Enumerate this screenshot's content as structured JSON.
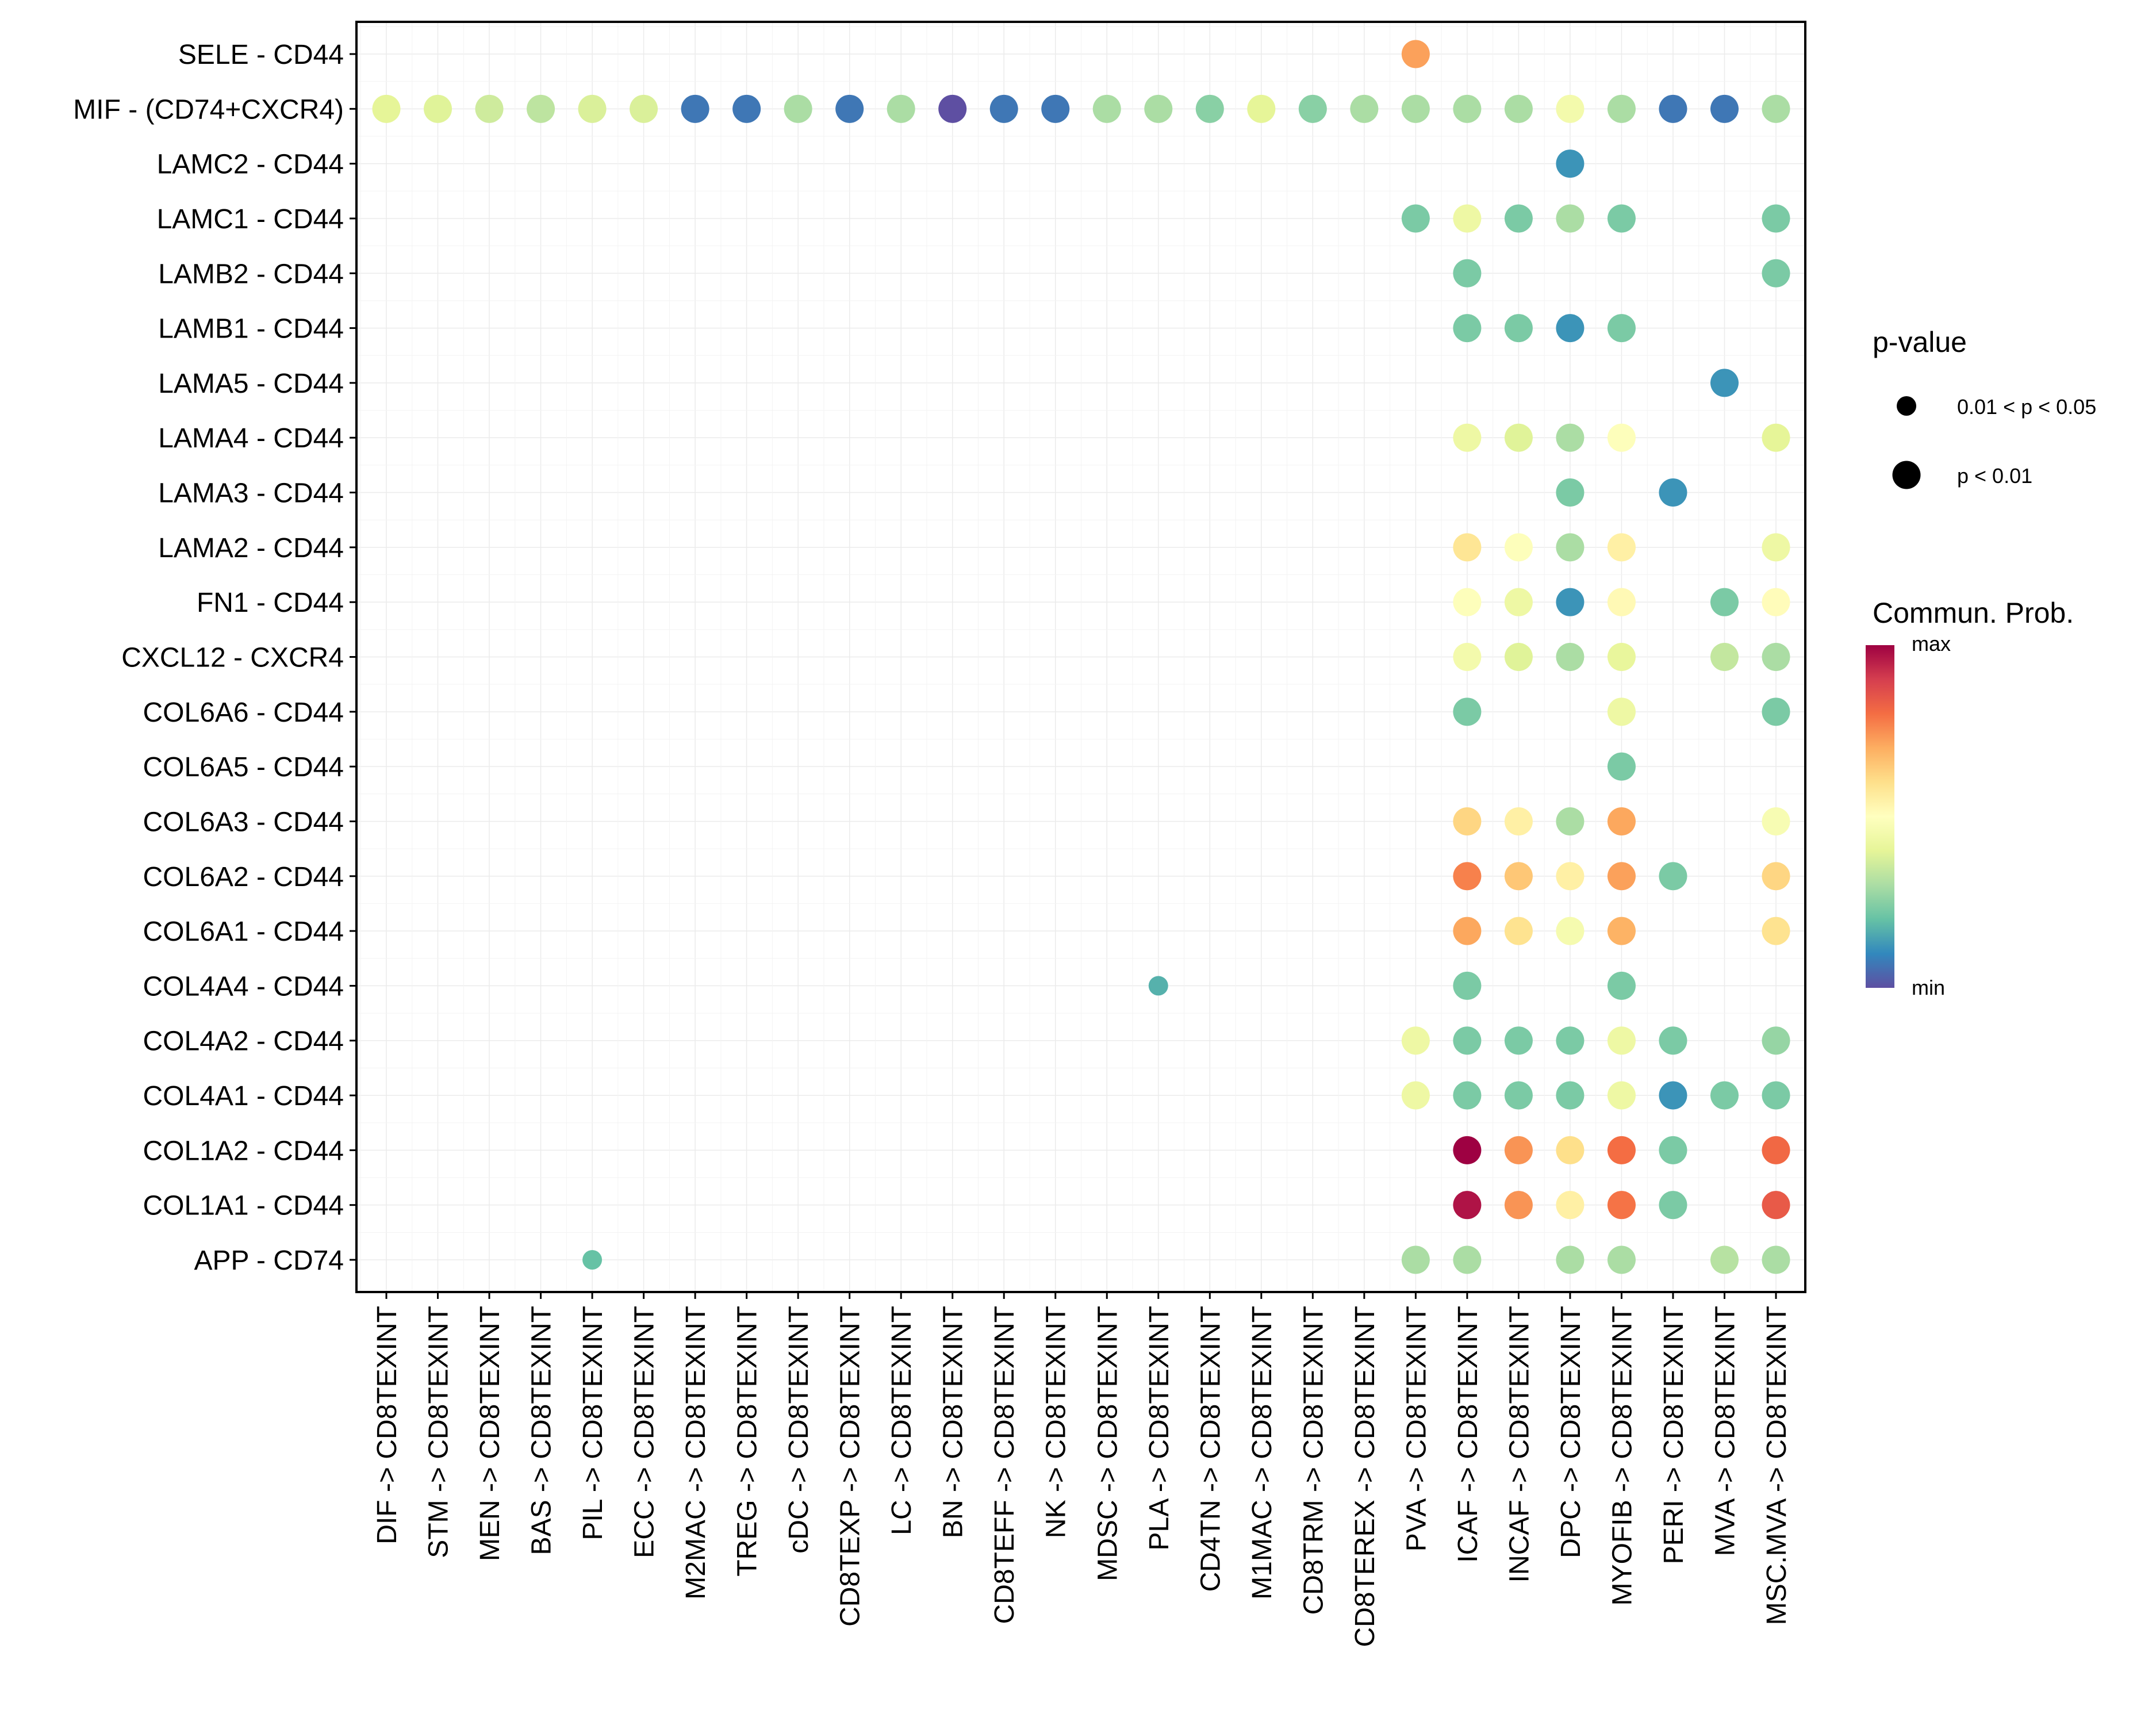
{
  "chart_data": {
    "type": "scatter",
    "subtype": "dot-plot",
    "title": "",
    "xlabel": "",
    "ylabel": "",
    "grid": true,
    "x_categories": [
      "DIF -> CD8TEXINT",
      "STM -> CD8TEXINT",
      "MEN -> CD8TEXINT",
      "BAS -> CD8TEXINT",
      "PIL -> CD8TEXINT",
      "ECC -> CD8TEXINT",
      "M2MAC -> CD8TEXINT",
      "TREG -> CD8TEXINT",
      "cDC -> CD8TEXINT",
      "CD8TEXP -> CD8TEXINT",
      "LC -> CD8TEXINT",
      "BN -> CD8TEXINT",
      "CD8TEFF -> CD8TEXINT",
      "NK -> CD8TEXINT",
      "MDSC -> CD8TEXINT",
      "PLA -> CD8TEXINT",
      "CD4TN -> CD8TEXINT",
      "M1MAC -> CD8TEXINT",
      "CD8TRM -> CD8TEXINT",
      "CD8TEREX -> CD8TEXINT",
      "PVA -> CD8TEXINT",
      "ICAF -> CD8TEXINT",
      "INCAF -> CD8TEXINT",
      "DPC -> CD8TEXINT",
      "MYOFIB -> CD8TEXINT",
      "PERI -> CD8TEXINT",
      "MVA -> CD8TEXINT",
      "MSC.MVA -> CD8TEXINT"
    ],
    "y_categories_top_to_bottom": [
      "SELE - CD44",
      "MIF - (CD74+CXCR4)",
      "LAMC2 - CD44",
      "LAMC1 - CD44",
      "LAMB2 - CD44",
      "LAMB1 - CD44",
      "LAMA5 - CD44",
      "LAMA4 - CD44",
      "LAMA3 - CD44",
      "LAMA2 - CD44",
      "FN1 - CD44",
      "CXCL12 - CXCR4",
      "COL6A6 - CD44",
      "COL6A5 - CD44",
      "COL6A3 - CD44",
      "COL6A2 - CD44",
      "COL6A1 - CD44",
      "COL4A4 - CD44",
      "COL4A2 - CD44",
      "COL4A1 - CD44",
      "COL1A2 - CD44",
      "COL1A1 - CD44",
      "APP - CD74"
    ],
    "value_scale": "relative communication probability, 0 = min, 1 = max",
    "points": [
      {
        "y": "SELE - CD44",
        "x": "PVA -> CD8TEXINT",
        "prob": 0.72,
        "p": "p < 0.01"
      },
      {
        "y": "MIF - (CD74+CXCR4)",
        "x": "DIF -> CD8TEXINT",
        "prob": 0.4,
        "p": "p < 0.01"
      },
      {
        "y": "MIF - (CD74+CXCR4)",
        "x": "STM -> CD8TEXINT",
        "prob": 0.39,
        "p": "p < 0.01"
      },
      {
        "y": "MIF - (CD74+CXCR4)",
        "x": "MEN -> CD8TEXINT",
        "prob": 0.36,
        "p": "p < 0.01"
      },
      {
        "y": "MIF - (CD74+CXCR4)",
        "x": "BAS -> CD8TEXINT",
        "prob": 0.33,
        "p": "p < 0.01"
      },
      {
        "y": "MIF - (CD74+CXCR4)",
        "x": "PIL -> CD8TEXINT",
        "prob": 0.38,
        "p": "p < 0.01"
      },
      {
        "y": "MIF - (CD74+CXCR4)",
        "x": "ECC -> CD8TEXINT",
        "prob": 0.38,
        "p": "p < 0.01"
      },
      {
        "y": "MIF - (CD74+CXCR4)",
        "x": "M2MAC -> CD8TEXINT",
        "prob": 0.07,
        "p": "p < 0.01"
      },
      {
        "y": "MIF - (CD74+CXCR4)",
        "x": "TREG -> CD8TEXINT",
        "prob": 0.07,
        "p": "p < 0.01"
      },
      {
        "y": "MIF - (CD74+CXCR4)",
        "x": "cDC -> CD8TEXINT",
        "prob": 0.3,
        "p": "p < 0.01"
      },
      {
        "y": "MIF - (CD74+CXCR4)",
        "x": "CD8TEXP -> CD8TEXINT",
        "prob": 0.07,
        "p": "p < 0.01"
      },
      {
        "y": "MIF - (CD74+CXCR4)",
        "x": "LC -> CD8TEXINT",
        "prob": 0.3,
        "p": "p < 0.01"
      },
      {
        "y": "MIF - (CD74+CXCR4)",
        "x": "BN -> CD8TEXINT",
        "prob": 0.0,
        "p": "p < 0.01"
      },
      {
        "y": "MIF - (CD74+CXCR4)",
        "x": "CD8TEFF -> CD8TEXINT",
        "prob": 0.07,
        "p": "p < 0.01"
      },
      {
        "y": "MIF - (CD74+CXCR4)",
        "x": "NK -> CD8TEXINT",
        "prob": 0.07,
        "p": "p < 0.01"
      },
      {
        "y": "MIF - (CD74+CXCR4)",
        "x": "MDSC -> CD8TEXINT",
        "prob": 0.3,
        "p": "p < 0.01"
      },
      {
        "y": "MIF - (CD74+CXCR4)",
        "x": "PLA -> CD8TEXINT",
        "prob": 0.3,
        "p": "p < 0.01"
      },
      {
        "y": "MIF - (CD74+CXCR4)",
        "x": "CD4TN -> CD8TEXINT",
        "prob": 0.25,
        "p": "p < 0.01"
      },
      {
        "y": "MIF - (CD74+CXCR4)",
        "x": "M1MAC -> CD8TEXINT",
        "prob": 0.4,
        "p": "p < 0.01"
      },
      {
        "y": "MIF - (CD74+CXCR4)",
        "x": "CD8TRM -> CD8TEXINT",
        "prob": 0.25,
        "p": "p < 0.01"
      },
      {
        "y": "MIF - (CD74+CXCR4)",
        "x": "CD8TEREX -> CD8TEXINT",
        "prob": 0.3,
        "p": "p < 0.01"
      },
      {
        "y": "MIF - (CD74+CXCR4)",
        "x": "PVA -> CD8TEXINT",
        "prob": 0.3,
        "p": "p < 0.01"
      },
      {
        "y": "MIF - (CD74+CXCR4)",
        "x": "ICAF -> CD8TEXINT",
        "prob": 0.3,
        "p": "p < 0.01"
      },
      {
        "y": "MIF - (CD74+CXCR4)",
        "x": "INCAF -> CD8TEXINT",
        "prob": 0.3,
        "p": "p < 0.01"
      },
      {
        "y": "MIF - (CD74+CXCR4)",
        "x": "DPC -> CD8TEXINT",
        "prob": 0.45,
        "p": "p < 0.01"
      },
      {
        "y": "MIF - (CD74+CXCR4)",
        "x": "MYOFIB -> CD8TEXINT",
        "prob": 0.3,
        "p": "p < 0.01"
      },
      {
        "y": "MIF - (CD74+CXCR4)",
        "x": "PERI -> CD8TEXINT",
        "prob": 0.07,
        "p": "p < 0.01"
      },
      {
        "y": "MIF - (CD74+CXCR4)",
        "x": "MVA -> CD8TEXINT",
        "prob": 0.07,
        "p": "p < 0.01"
      },
      {
        "y": "MIF - (CD74+CXCR4)",
        "x": "MSC.MVA -> CD8TEXINT",
        "prob": 0.3,
        "p": "p < 0.01"
      },
      {
        "y": "LAMC2 - CD44",
        "x": "DPC -> CD8TEXINT",
        "prob": 0.12,
        "p": "p < 0.01"
      },
      {
        "y": "LAMC1 - CD44",
        "x": "PVA -> CD8TEXINT",
        "prob": 0.23,
        "p": "p < 0.01"
      },
      {
        "y": "LAMC1 - CD44",
        "x": "ICAF -> CD8TEXINT",
        "prob": 0.43,
        "p": "p < 0.01"
      },
      {
        "y": "LAMC1 - CD44",
        "x": "INCAF -> CD8TEXINT",
        "prob": 0.23,
        "p": "p < 0.01"
      },
      {
        "y": "LAMC1 - CD44",
        "x": "DPC -> CD8TEXINT",
        "prob": 0.3,
        "p": "p < 0.01"
      },
      {
        "y": "LAMC1 - CD44",
        "x": "MYOFIB -> CD8TEXINT",
        "prob": 0.23,
        "p": "p < 0.01"
      },
      {
        "y": "LAMC1 - CD44",
        "x": "MSC.MVA -> CD8TEXINT",
        "prob": 0.23,
        "p": "p < 0.01"
      },
      {
        "y": "LAMB2 - CD44",
        "x": "ICAF -> CD8TEXINT",
        "prob": 0.23,
        "p": "p < 0.01"
      },
      {
        "y": "LAMB2 - CD44",
        "x": "MSC.MVA -> CD8TEXINT",
        "prob": 0.23,
        "p": "p < 0.01"
      },
      {
        "y": "LAMB1 - CD44",
        "x": "ICAF -> CD8TEXINT",
        "prob": 0.23,
        "p": "p < 0.01"
      },
      {
        "y": "LAMB1 - CD44",
        "x": "INCAF -> CD8TEXINT",
        "prob": 0.23,
        "p": "p < 0.01"
      },
      {
        "y": "LAMB1 - CD44",
        "x": "DPC -> CD8TEXINT",
        "prob": 0.12,
        "p": "p < 0.01"
      },
      {
        "y": "LAMB1 - CD44",
        "x": "MYOFIB -> CD8TEXINT",
        "prob": 0.23,
        "p": "p < 0.01"
      },
      {
        "y": "LAMA5 - CD44",
        "x": "MVA -> CD8TEXINT",
        "prob": 0.12,
        "p": "p < 0.01"
      },
      {
        "y": "LAMA4 - CD44",
        "x": "ICAF -> CD8TEXINT",
        "prob": 0.43,
        "p": "p < 0.01"
      },
      {
        "y": "LAMA4 - CD44",
        "x": "INCAF -> CD8TEXINT",
        "prob": 0.39,
        "p": "p < 0.01"
      },
      {
        "y": "LAMA4 - CD44",
        "x": "DPC -> CD8TEXINT",
        "prob": 0.3,
        "p": "p < 0.01"
      },
      {
        "y": "LAMA4 - CD44",
        "x": "MYOFIB -> CD8TEXINT",
        "prob": 0.49,
        "p": "p < 0.01"
      },
      {
        "y": "LAMA4 - CD44",
        "x": "MSC.MVA -> CD8TEXINT",
        "prob": 0.4,
        "p": "p < 0.01"
      },
      {
        "y": "LAMA3 - CD44",
        "x": "DPC -> CD8TEXINT",
        "prob": 0.23,
        "p": "p < 0.01"
      },
      {
        "y": "LAMA3 - CD44",
        "x": "PERI -> CD8TEXINT",
        "prob": 0.12,
        "p": "p < 0.01"
      },
      {
        "y": "LAMA2 - CD44",
        "x": "ICAF -> CD8TEXINT",
        "prob": 0.58,
        "p": "p < 0.01"
      },
      {
        "y": "LAMA2 - CD44",
        "x": "INCAF -> CD8TEXINT",
        "prob": 0.49,
        "p": "p < 0.01"
      },
      {
        "y": "LAMA2 - CD44",
        "x": "DPC -> CD8TEXINT",
        "prob": 0.3,
        "p": "p < 0.01"
      },
      {
        "y": "LAMA2 - CD44",
        "x": "MYOFIB -> CD8TEXINT",
        "prob": 0.55,
        "p": "p < 0.01"
      },
      {
        "y": "LAMA2 - CD44",
        "x": "MSC.MVA -> CD8TEXINT",
        "prob": 0.43,
        "p": "p < 0.01"
      },
      {
        "y": "FN1 - CD44",
        "x": "ICAF -> CD8TEXINT",
        "prob": 0.49,
        "p": "p < 0.01"
      },
      {
        "y": "FN1 - CD44",
        "x": "INCAF -> CD8TEXINT",
        "prob": 0.43,
        "p": "p < 0.01"
      },
      {
        "y": "FN1 - CD44",
        "x": "DPC -> CD8TEXINT",
        "prob": 0.12,
        "p": "p < 0.01"
      },
      {
        "y": "FN1 - CD44",
        "x": "MYOFIB -> CD8TEXINT",
        "prob": 0.52,
        "p": "p < 0.01"
      },
      {
        "y": "FN1 - CD44",
        "x": "MVA -> CD8TEXINT",
        "prob": 0.23,
        "p": "p < 0.01"
      },
      {
        "y": "FN1 - CD44",
        "x": "MSC.MVA -> CD8TEXINT",
        "prob": 0.51,
        "p": "p < 0.01"
      },
      {
        "y": "CXCL12 - CXCR4",
        "x": "ICAF -> CD8TEXINT",
        "prob": 0.45,
        "p": "p < 0.01"
      },
      {
        "y": "CXCL12 - CXCR4",
        "x": "INCAF -> CD8TEXINT",
        "prob": 0.39,
        "p": "p < 0.01"
      },
      {
        "y": "CXCL12 - CXCR4",
        "x": "DPC -> CD8TEXINT",
        "prob": 0.3,
        "p": "p < 0.01"
      },
      {
        "y": "CXCL12 - CXCR4",
        "x": "MYOFIB -> CD8TEXINT",
        "prob": 0.41,
        "p": "p < 0.01"
      },
      {
        "y": "CXCL12 - CXCR4",
        "x": "MVA -> CD8TEXINT",
        "prob": 0.34,
        "p": "p < 0.01"
      },
      {
        "y": "CXCL12 - CXCR4",
        "x": "MSC.MVA -> CD8TEXINT",
        "prob": 0.3,
        "p": "p < 0.01"
      },
      {
        "y": "COL6A6 - CD44",
        "x": "ICAF -> CD8TEXINT",
        "prob": 0.23,
        "p": "p < 0.01"
      },
      {
        "y": "COL6A6 - CD44",
        "x": "MYOFIB -> CD8TEXINT",
        "prob": 0.43,
        "p": "p < 0.01"
      },
      {
        "y": "COL6A6 - CD44",
        "x": "MSC.MVA -> CD8TEXINT",
        "prob": 0.23,
        "p": "p < 0.01"
      },
      {
        "y": "COL6A5 - CD44",
        "x": "MYOFIB -> CD8TEXINT",
        "prob": 0.23,
        "p": "p < 0.01"
      },
      {
        "y": "COL6A3 - CD44",
        "x": "ICAF -> CD8TEXINT",
        "prob": 0.62,
        "p": "p < 0.01"
      },
      {
        "y": "COL6A3 - CD44",
        "x": "INCAF -> CD8TEXINT",
        "prob": 0.55,
        "p": "p < 0.01"
      },
      {
        "y": "COL6A3 - CD44",
        "x": "DPC -> CD8TEXINT",
        "prob": 0.3,
        "p": "p < 0.01"
      },
      {
        "y": "COL6A3 - CD44",
        "x": "MYOFIB -> CD8TEXINT",
        "prob": 0.71,
        "p": "p < 0.01"
      },
      {
        "y": "COL6A3 - CD44",
        "x": "MSC.MVA -> CD8TEXINT",
        "prob": 0.47,
        "p": "p < 0.01"
      },
      {
        "y": "COL6A2 - CD44",
        "x": "ICAF -> CD8TEXINT",
        "prob": 0.77,
        "p": "p < 0.01"
      },
      {
        "y": "COL6A2 - CD44",
        "x": "INCAF -> CD8TEXINT",
        "prob": 0.65,
        "p": "p < 0.01"
      },
      {
        "y": "COL6A2 - CD44",
        "x": "DPC -> CD8TEXINT",
        "prob": 0.55,
        "p": "p < 0.01"
      },
      {
        "y": "COL6A2 - CD44",
        "x": "MYOFIB -> CD8TEXINT",
        "prob": 0.72,
        "p": "p < 0.01"
      },
      {
        "y": "COL6A2 - CD44",
        "x": "PERI -> CD8TEXINT",
        "prob": 0.23,
        "p": "p < 0.01"
      },
      {
        "y": "COL6A2 - CD44",
        "x": "MSC.MVA -> CD8TEXINT",
        "prob": 0.62,
        "p": "p < 0.01"
      },
      {
        "y": "COL6A1 - CD44",
        "x": "ICAF -> CD8TEXINT",
        "prob": 0.71,
        "p": "p < 0.01"
      },
      {
        "y": "COL6A1 - CD44",
        "x": "INCAF -> CD8TEXINT",
        "prob": 0.59,
        "p": "p < 0.01"
      },
      {
        "y": "COL6A1 - CD44",
        "x": "DPC -> CD8TEXINT",
        "prob": 0.46,
        "p": "p < 0.01"
      },
      {
        "y": "COL6A1 - CD44",
        "x": "MYOFIB -> CD8TEXINT",
        "prob": 0.69,
        "p": "p < 0.01"
      },
      {
        "y": "COL6A1 - CD44",
        "x": "MSC.MVA -> CD8TEXINT",
        "prob": 0.59,
        "p": "p < 0.01"
      },
      {
        "y": "COL4A4 - CD44",
        "x": "PLA -> CD8TEXINT",
        "prob": 0.17,
        "p": "0.01 < p < 0.05"
      },
      {
        "y": "COL4A4 - CD44",
        "x": "ICAF -> CD8TEXINT",
        "prob": 0.23,
        "p": "p < 0.01"
      },
      {
        "y": "COL4A4 - CD44",
        "x": "MYOFIB -> CD8TEXINT",
        "prob": 0.23,
        "p": "p < 0.01"
      },
      {
        "y": "COL4A2 - CD44",
        "x": "PVA -> CD8TEXINT",
        "prob": 0.43,
        "p": "p < 0.01"
      },
      {
        "y": "COL4A2 - CD44",
        "x": "ICAF -> CD8TEXINT",
        "prob": 0.23,
        "p": "p < 0.01"
      },
      {
        "y": "COL4A2 - CD44",
        "x": "INCAF -> CD8TEXINT",
        "prob": 0.23,
        "p": "p < 0.01"
      },
      {
        "y": "COL4A2 - CD44",
        "x": "DPC -> CD8TEXINT",
        "prob": 0.23,
        "p": "p < 0.01"
      },
      {
        "y": "COL4A2 - CD44",
        "x": "MYOFIB -> CD8TEXINT",
        "prob": 0.43,
        "p": "p < 0.01"
      },
      {
        "y": "COL4A2 - CD44",
        "x": "PERI -> CD8TEXINT",
        "prob": 0.23,
        "p": "p < 0.01"
      },
      {
        "y": "COL4A2 - CD44",
        "x": "MSC.MVA -> CD8TEXINT",
        "prob": 0.27,
        "p": "p < 0.01"
      },
      {
        "y": "COL4A1 - CD44",
        "x": "PVA -> CD8TEXINT",
        "prob": 0.43,
        "p": "p < 0.01"
      },
      {
        "y": "COL4A1 - CD44",
        "x": "ICAF -> CD8TEXINT",
        "prob": 0.23,
        "p": "p < 0.01"
      },
      {
        "y": "COL4A1 - CD44",
        "x": "INCAF -> CD8TEXINT",
        "prob": 0.23,
        "p": "p < 0.01"
      },
      {
        "y": "COL4A1 - CD44",
        "x": "DPC -> CD8TEXINT",
        "prob": 0.23,
        "p": "p < 0.01"
      },
      {
        "y": "COL4A1 - CD44",
        "x": "MYOFIB -> CD8TEXINT",
        "prob": 0.43,
        "p": "p < 0.01"
      },
      {
        "y": "COL4A1 - CD44",
        "x": "PERI -> CD8TEXINT",
        "prob": 0.12,
        "p": "p < 0.01"
      },
      {
        "y": "COL4A1 - CD44",
        "x": "MVA -> CD8TEXINT",
        "prob": 0.23,
        "p": "p < 0.01"
      },
      {
        "y": "COL4A1 - CD44",
        "x": "MSC.MVA -> CD8TEXINT",
        "prob": 0.23,
        "p": "p < 0.01"
      },
      {
        "y": "COL1A2 - CD44",
        "x": "ICAF -> CD8TEXINT",
        "prob": 1.0,
        "p": "p < 0.01"
      },
      {
        "y": "COL1A2 - CD44",
        "x": "INCAF -> CD8TEXINT",
        "prob": 0.74,
        "p": "p < 0.01"
      },
      {
        "y": "COL1A2 - CD44",
        "x": "DPC -> CD8TEXINT",
        "prob": 0.6,
        "p": "p < 0.01"
      },
      {
        "y": "COL1A2 - CD44",
        "x": "MYOFIB -> CD8TEXINT",
        "prob": 0.8,
        "p": "p < 0.01"
      },
      {
        "y": "COL1A2 - CD44",
        "x": "PERI -> CD8TEXINT",
        "prob": 0.23,
        "p": "p < 0.01"
      },
      {
        "y": "COL1A2 - CD44",
        "x": "MSC.MVA -> CD8TEXINT",
        "prob": 0.81,
        "p": "p < 0.01"
      },
      {
        "y": "COL1A1 - CD44",
        "x": "ICAF -> CD8TEXINT",
        "prob": 0.97,
        "p": "p < 0.01"
      },
      {
        "y": "COL1A1 - CD44",
        "x": "INCAF -> CD8TEXINT",
        "prob": 0.74,
        "p": "p < 0.01"
      },
      {
        "y": "COL1A1 - CD44",
        "x": "DPC -> CD8TEXINT",
        "prob": 0.55,
        "p": "p < 0.01"
      },
      {
        "y": "COL1A1 - CD44",
        "x": "MYOFIB -> CD8TEXINT",
        "prob": 0.79,
        "p": "p < 0.01"
      },
      {
        "y": "COL1A1 - CD44",
        "x": "PERI -> CD8TEXINT",
        "prob": 0.23,
        "p": "p < 0.01"
      },
      {
        "y": "COL1A1 - CD44",
        "x": "MSC.MVA -> CD8TEXINT",
        "prob": 0.84,
        "p": "p < 0.01"
      },
      {
        "y": "APP - CD74",
        "x": "PIL -> CD8TEXINT",
        "prob": 0.2,
        "p": "0.01 < p < 0.05"
      },
      {
        "y": "APP - CD74",
        "x": "PVA -> CD8TEXINT",
        "prob": 0.3,
        "p": "p < 0.01"
      },
      {
        "y": "APP - CD74",
        "x": "ICAF -> CD8TEXINT",
        "prob": 0.3,
        "p": "p < 0.01"
      },
      {
        "y": "APP - CD74",
        "x": "DPC -> CD8TEXINT",
        "prob": 0.3,
        "p": "p < 0.01"
      },
      {
        "y": "APP - CD74",
        "x": "MYOFIB -> CD8TEXINT",
        "prob": 0.3,
        "p": "p < 0.01"
      },
      {
        "y": "APP - CD74",
        "x": "MVA -> CD8TEXINT",
        "prob": 0.32,
        "p": "p < 0.01"
      },
      {
        "y": "APP - CD74",
        "x": "MSC.MVA -> CD8TEXINT",
        "prob": 0.3,
        "p": "p < 0.01"
      }
    ],
    "legend": {
      "size": {
        "title": "p-value",
        "entries": [
          "0.01 < p < 0.05",
          "p < 0.01"
        ]
      },
      "color": {
        "title": "Commun. Prob.",
        "max_label": "max",
        "min_label": "min",
        "palette_min_to_max": [
          "#5E4FA2",
          "#3288BD",
          "#66C2A5",
          "#ABDDA4",
          "#E6F598",
          "#FFFFBF",
          "#FEE08B",
          "#FDAE61",
          "#F46D43",
          "#D53E4F",
          "#9E0142"
        ]
      },
      "placement": "right"
    }
  }
}
